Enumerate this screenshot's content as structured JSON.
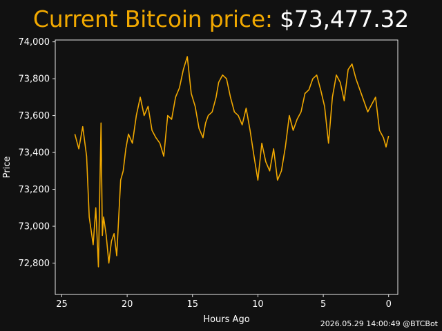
{
  "title": {
    "label": "Current Bitcoin price:",
    "price": "$73,477.32"
  },
  "footer": {
    "timestamp": "2026.05.29 14:00:49 @BTCBot"
  },
  "colors": {
    "background": "#111111",
    "line": "#f2a900",
    "text": "#ffffff",
    "axes": "#ffffff"
  },
  "chart_data": {
    "type": "line",
    "title": "",
    "xlabel": "Hours Ago",
    "ylabel": "Price",
    "xlim": [
      25.5,
      -0.7
    ],
    "ylim": [
      72630,
      74010
    ],
    "x_ticks": [
      25,
      20,
      15,
      10,
      5,
      0
    ],
    "x_tick_labels": [
      "25",
      "20",
      "15",
      "10",
      "5",
      "0"
    ],
    "y_ticks": [
      72800,
      73000,
      73200,
      73400,
      73600,
      73800,
      74000
    ],
    "y_tick_labels": [
      "72,800",
      "73,000",
      "73,200",
      "73,400",
      "73,600",
      "73,800",
      "74,000"
    ],
    "grid": false,
    "series": [
      {
        "x": [
          24.0,
          23.7,
          23.4,
          23.1,
          22.9,
          22.6,
          22.4,
          22.2,
          22.0,
          21.9,
          21.8,
          21.6,
          21.4,
          21.2,
          21.0,
          20.8,
          20.5,
          20.3,
          20.1,
          19.9,
          19.6,
          19.3,
          19.0,
          18.7,
          18.4,
          18.1,
          17.8,
          17.5,
          17.2,
          16.9,
          16.6,
          16.3,
          16.0,
          15.7,
          15.4,
          15.1,
          14.8,
          14.5,
          14.2,
          14.0,
          13.8,
          13.5,
          13.2,
          13.0,
          12.7,
          12.4,
          12.1,
          11.8,
          11.5,
          11.2,
          10.9,
          10.6,
          10.3,
          10.0,
          9.7,
          9.4,
          9.1,
          8.8,
          8.5,
          8.2,
          7.9,
          7.6,
          7.3,
          7.0,
          6.7,
          6.4,
          6.1,
          5.8,
          5.5,
          5.2,
          4.9,
          4.6,
          4.3,
          4.0,
          3.7,
          3.4,
          3.1,
          2.8,
          2.5,
          2.2,
          1.9,
          1.6,
          1.3,
          1.0,
          0.7,
          0.4,
          0.2,
          0.0
        ],
        "values": [
          73500,
          73420,
          73540,
          73380,
          73050,
          72900,
          73100,
          72780,
          73560,
          72950,
          73050,
          72950,
          72800,
          72920,
          72960,
          72840,
          73250,
          73300,
          73420,
          73500,
          73450,
          73600,
          73700,
          73600,
          73650,
          73520,
          73480,
          73450,
          73380,
          73600,
          73580,
          73700,
          73750,
          73850,
          73920,
          73720,
          73650,
          73530,
          73480,
          73560,
          73600,
          73620,
          73700,
          73780,
          73820,
          73800,
          73700,
          73620,
          73600,
          73550,
          73640,
          73520,
          73380,
          73250,
          73450,
          73350,
          73300,
          73420,
          73250,
          73300,
          73430,
          73600,
          73520,
          73580,
          73620,
          73720,
          73740,
          73800,
          73820,
          73740,
          73650,
          73450,
          73700,
          73820,
          73780,
          73680,
          73850,
          73880,
          73800,
          73740,
          73680,
          73620,
          73660,
          73700,
          73520,
          73480,
          73430,
          73490
        ]
      }
    ]
  }
}
